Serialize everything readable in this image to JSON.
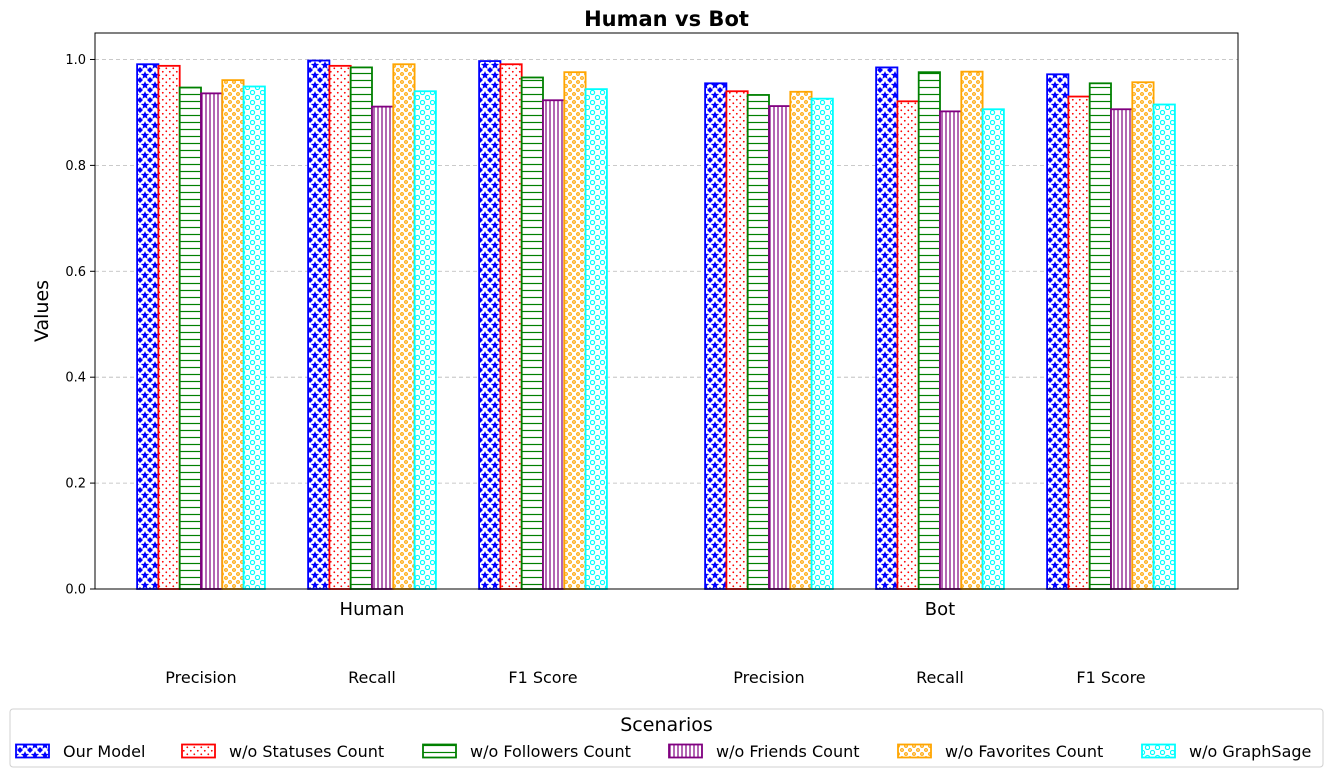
{
  "chart_data": {
    "type": "bar",
    "title": "Human vs Bot",
    "ylabel": "Values",
    "xlabel": "",
    "ylim": [
      0,
      1.05
    ],
    "yticks": [
      "0.0",
      "0.2",
      "0.4",
      "0.6",
      "0.8",
      "1.0"
    ],
    "grid": "y-dashed",
    "groups": [
      "Human",
      "Bot"
    ],
    "metrics": [
      "Precision",
      "Recall",
      "F1 Score"
    ],
    "legend": {
      "title": "Scenarios",
      "placement": "bottom"
    },
    "series": [
      {
        "name": "Our Model",
        "color": "#0000ff",
        "pattern": "stars",
        "values": {
          "Human": [
            0.991,
            0.998,
            0.997
          ],
          "Bot": [
            0.955,
            0.985,
            0.972
          ]
        }
      },
      {
        "name": "w/o Statuses Count",
        "color": "#ff0000",
        "pattern": "dots",
        "values": {
          "Human": [
            0.988,
            0.988,
            0.991
          ],
          "Bot": [
            0.94,
            0.921,
            0.93
          ]
        }
      },
      {
        "name": "w/o Followers Count",
        "color": "#008000",
        "pattern": "horizontal-lines",
        "values": {
          "Human": [
            0.947,
            0.985,
            0.966
          ],
          "Bot": [
            0.933,
            0.976,
            0.955
          ]
        }
      },
      {
        "name": "w/o Friends Count",
        "color": "#800080",
        "pattern": "vertical-lines",
        "values": {
          "Human": [
            0.936,
            0.911,
            0.923
          ],
          "Bot": [
            0.912,
            0.902,
            0.906
          ]
        }
      },
      {
        "name": "w/o Favorites Count",
        "color": "#ffa500",
        "pattern": "small-circles",
        "values": {
          "Human": [
            0.961,
            0.991,
            0.976
          ],
          "Bot": [
            0.939,
            0.977,
            0.957
          ]
        }
      },
      {
        "name": "w/o GraphSage",
        "color": "#00ffff",
        "pattern": "large-circles",
        "values": {
          "Human": [
            0.949,
            0.94,
            0.944
          ],
          "Bot": [
            0.926,
            0.906,
            0.915
          ]
        }
      }
    ]
  }
}
